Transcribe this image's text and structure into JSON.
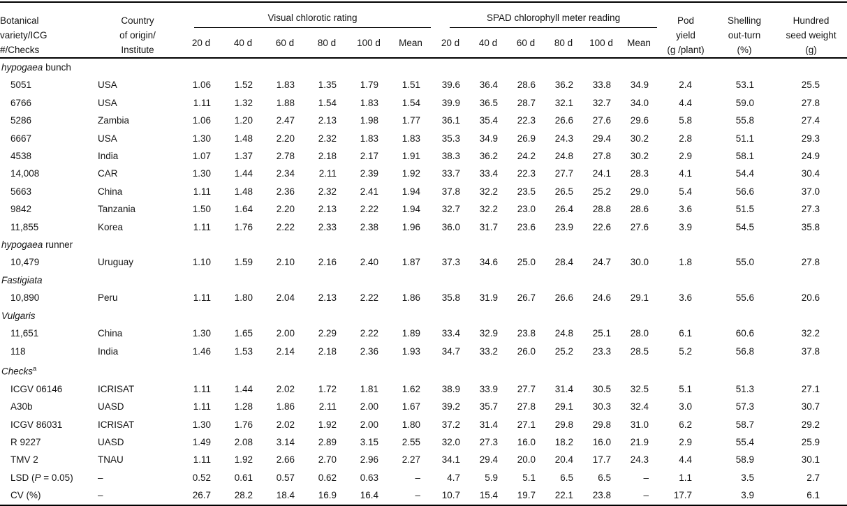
{
  "header": {
    "col_variety": [
      "Botanical",
      "variety/ICG",
      "#/Checks"
    ],
    "col_country": [
      "Country",
      "of origin/",
      "Institute"
    ],
    "group_vcr": "Visual chlorotic rating",
    "group_spad": "SPAD chlorophyll meter reading",
    "day_cols": [
      "20 d",
      "40 d",
      "60 d",
      "80 d",
      "100 d",
      "Mean"
    ],
    "col_pod": [
      "Pod",
      "yield",
      "(g /plant)"
    ],
    "col_shelling": [
      "Shelling",
      "out-turn",
      "(%)"
    ],
    "col_hsw": [
      "Hundred",
      "seed weight",
      "(g)"
    ]
  },
  "sections": [
    {
      "title": [
        [
          "hypogaea",
          true
        ],
        [
          " bunch",
          false
        ]
      ],
      "sup": "",
      "rows": [
        {
          "name": [
            [
              "5051",
              false
            ]
          ],
          "country": "USA",
          "values": [
            "1.06",
            "1.52",
            "1.83",
            "1.35",
            "1.79",
            "1.51",
            "39.6",
            "36.4",
            "28.6",
            "36.2",
            "33.8",
            "34.9",
            "2.4",
            "53.1",
            "25.5"
          ]
        },
        {
          "name": [
            [
              "6766",
              false
            ]
          ],
          "country": "USA",
          "values": [
            "1.11",
            "1.32",
            "1.88",
            "1.54",
            "1.83",
            "1.54",
            "39.9",
            "36.5",
            "28.7",
            "32.1",
            "32.7",
            "34.0",
            "4.4",
            "59.0",
            "27.8"
          ]
        },
        {
          "name": [
            [
              "5286",
              false
            ]
          ],
          "country": "Zambia",
          "values": [
            "1.06",
            "1.20",
            "2.47",
            "2.13",
            "1.98",
            "1.77",
            "36.1",
            "35.4",
            "22.3",
            "26.6",
            "27.6",
            "29.6",
            "5.8",
            "55.8",
            "27.4"
          ]
        },
        {
          "name": [
            [
              "6667",
              false
            ]
          ],
          "country": "USA",
          "values": [
            "1.30",
            "1.48",
            "2.20",
            "2.32",
            "1.83",
            "1.83",
            "35.3",
            "34.9",
            "26.9",
            "24.3",
            "29.4",
            "30.2",
            "2.8",
            "51.1",
            "29.3"
          ]
        },
        {
          "name": [
            [
              "4538",
              false
            ]
          ],
          "country": "India",
          "values": [
            "1.07",
            "1.37",
            "2.78",
            "2.18",
            "2.17",
            "1.91",
            "38.3",
            "36.2",
            "24.2",
            "24.8",
            "27.8",
            "30.2",
            "2.9",
            "58.1",
            "24.9"
          ]
        },
        {
          "name": [
            [
              "14,008",
              false
            ]
          ],
          "country": "CAR",
          "values": [
            "1.30",
            "1.44",
            "2.34",
            "2.11",
            "2.39",
            "1.92",
            "33.7",
            "33.4",
            "22.3",
            "27.7",
            "24.1",
            "28.3",
            "4.1",
            "54.4",
            "30.4"
          ]
        },
        {
          "name": [
            [
              "5663",
              false
            ]
          ],
          "country": "China",
          "values": [
            "1.11",
            "1.48",
            "2.36",
            "2.32",
            "2.41",
            "1.94",
            "37.8",
            "32.2",
            "23.5",
            "26.5",
            "25.2",
            "29.0",
            "5.4",
            "56.6",
            "37.0"
          ]
        },
        {
          "name": [
            [
              "9842",
              false
            ]
          ],
          "country": "Tanzania",
          "values": [
            "1.50",
            "1.64",
            "2.20",
            "2.13",
            "2.22",
            "1.94",
            "32.7",
            "32.2",
            "23.0",
            "26.4",
            "28.8",
            "28.6",
            "3.6",
            "51.5",
            "27.3"
          ]
        },
        {
          "name": [
            [
              "11,855",
              false
            ]
          ],
          "country": "Korea",
          "values": [
            "1.11",
            "1.76",
            "2.22",
            "2.33",
            "2.38",
            "1.96",
            "36.0",
            "31.7",
            "23.6",
            "23.9",
            "22.6",
            "27.6",
            "3.9",
            "54.5",
            "35.8"
          ]
        }
      ]
    },
    {
      "title": [
        [
          "hypogaea",
          true
        ],
        [
          " runner",
          false
        ]
      ],
      "sup": "",
      "rows": [
        {
          "name": [
            [
              "10,479",
              false
            ]
          ],
          "country": "Uruguay",
          "values": [
            "1.10",
            "1.59",
            "2.10",
            "2.16",
            "2.40",
            "1.87",
            "37.3",
            "34.6",
            "25.0",
            "28.4",
            "24.7",
            "30.0",
            "1.8",
            "55.0",
            "27.8"
          ]
        }
      ]
    },
    {
      "title": [
        [
          "Fastigiata",
          true
        ]
      ],
      "sup": "",
      "rows": [
        {
          "name": [
            [
              "10,890",
              false
            ]
          ],
          "country": "Peru",
          "values": [
            "1.11",
            "1.80",
            "2.04",
            "2.13",
            "2.22",
            "1.86",
            "35.8",
            "31.9",
            "26.7",
            "26.6",
            "24.6",
            "29.1",
            "3.6",
            "55.6",
            "20.6"
          ]
        }
      ]
    },
    {
      "title": [
        [
          "Vulgaris",
          true
        ]
      ],
      "sup": "",
      "rows": [
        {
          "name": [
            [
              "11,651",
              false
            ]
          ],
          "country": "China",
          "values": [
            "1.30",
            "1.65",
            "2.00",
            "2.29",
            "2.22",
            "1.89",
            "33.4",
            "32.9",
            "23.8",
            "24.8",
            "25.1",
            "28.0",
            "6.1",
            "60.6",
            "32.2"
          ]
        },
        {
          "name": [
            [
              "118",
              false
            ]
          ],
          "country": "India",
          "values": [
            "1.46",
            "1.53",
            "2.14",
            "2.18",
            "2.36",
            "1.93",
            "34.7",
            "33.2",
            "26.0",
            "25.2",
            "23.3",
            "28.5",
            "5.2",
            "56.8",
            "37.8"
          ]
        }
      ]
    },
    {
      "title": [
        [
          "Checks",
          true
        ]
      ],
      "sup": "a",
      "rows": [
        {
          "name": [
            [
              "ICGV 06146",
              false
            ]
          ],
          "country": "ICRISAT",
          "values": [
            "1.11",
            "1.44",
            "2.02",
            "1.72",
            "1.81",
            "1.62",
            "38.9",
            "33.9",
            "27.7",
            "31.4",
            "30.5",
            "32.5",
            "5.1",
            "51.3",
            "27.1"
          ]
        },
        {
          "name": [
            [
              "A30b",
              false
            ]
          ],
          "country": "UASD",
          "values": [
            "1.11",
            "1.28",
            "1.86",
            "2.11",
            "2.00",
            "1.67",
            "39.2",
            "35.7",
            "27.8",
            "29.1",
            "30.3",
            "32.4",
            "3.0",
            "57.3",
            "30.7"
          ]
        },
        {
          "name": [
            [
              "ICGV 86031",
              false
            ]
          ],
          "country": "ICRISAT",
          "values": [
            "1.30",
            "1.76",
            "2.02",
            "1.92",
            "2.00",
            "1.80",
            "37.2",
            "31.4",
            "27.1",
            "29.8",
            "29.8",
            "31.0",
            "6.2",
            "58.7",
            "29.2"
          ]
        },
        {
          "name": [
            [
              "R 9227",
              false
            ]
          ],
          "country": "UASD",
          "values": [
            "1.49",
            "2.08",
            "3.14",
            "2.89",
            "3.15",
            "2.55",
            "32.0",
            "27.3",
            "16.0",
            "18.2",
            "16.0",
            "21.9",
            "2.9",
            "55.4",
            "25.9"
          ]
        },
        {
          "name": [
            [
              "TMV 2",
              false
            ]
          ],
          "country": "TNAU",
          "values": [
            "1.11",
            "1.92",
            "2.66",
            "2.70",
            "2.96",
            "2.27",
            "34.1",
            "29.4",
            "20.0",
            "20.4",
            "17.7",
            "24.3",
            "4.4",
            "58.9",
            "30.1"
          ]
        },
        {
          "name": [
            [
              "LSD (",
              false
            ],
            [
              "P",
              true
            ],
            [
              " = 0.05)",
              false
            ]
          ],
          "country": "–",
          "values": [
            "0.52",
            "0.61",
            "0.57",
            "0.62",
            "0.63",
            "–",
            "4.7",
            "5.9",
            "5.1",
            "6.5",
            "6.5",
            "–",
            "1.1",
            "3.5",
            "2.7"
          ]
        },
        {
          "name": [
            [
              "CV (%)",
              false
            ]
          ],
          "country": "–",
          "values": [
            "26.7",
            "28.2",
            "18.4",
            "16.9",
            "16.4",
            "–",
            "10.7",
            "15.4",
            "19.7",
            "22.1",
            "23.8",
            "–",
            "17.7",
            "3.9",
            "6.1"
          ]
        }
      ]
    }
  ]
}
